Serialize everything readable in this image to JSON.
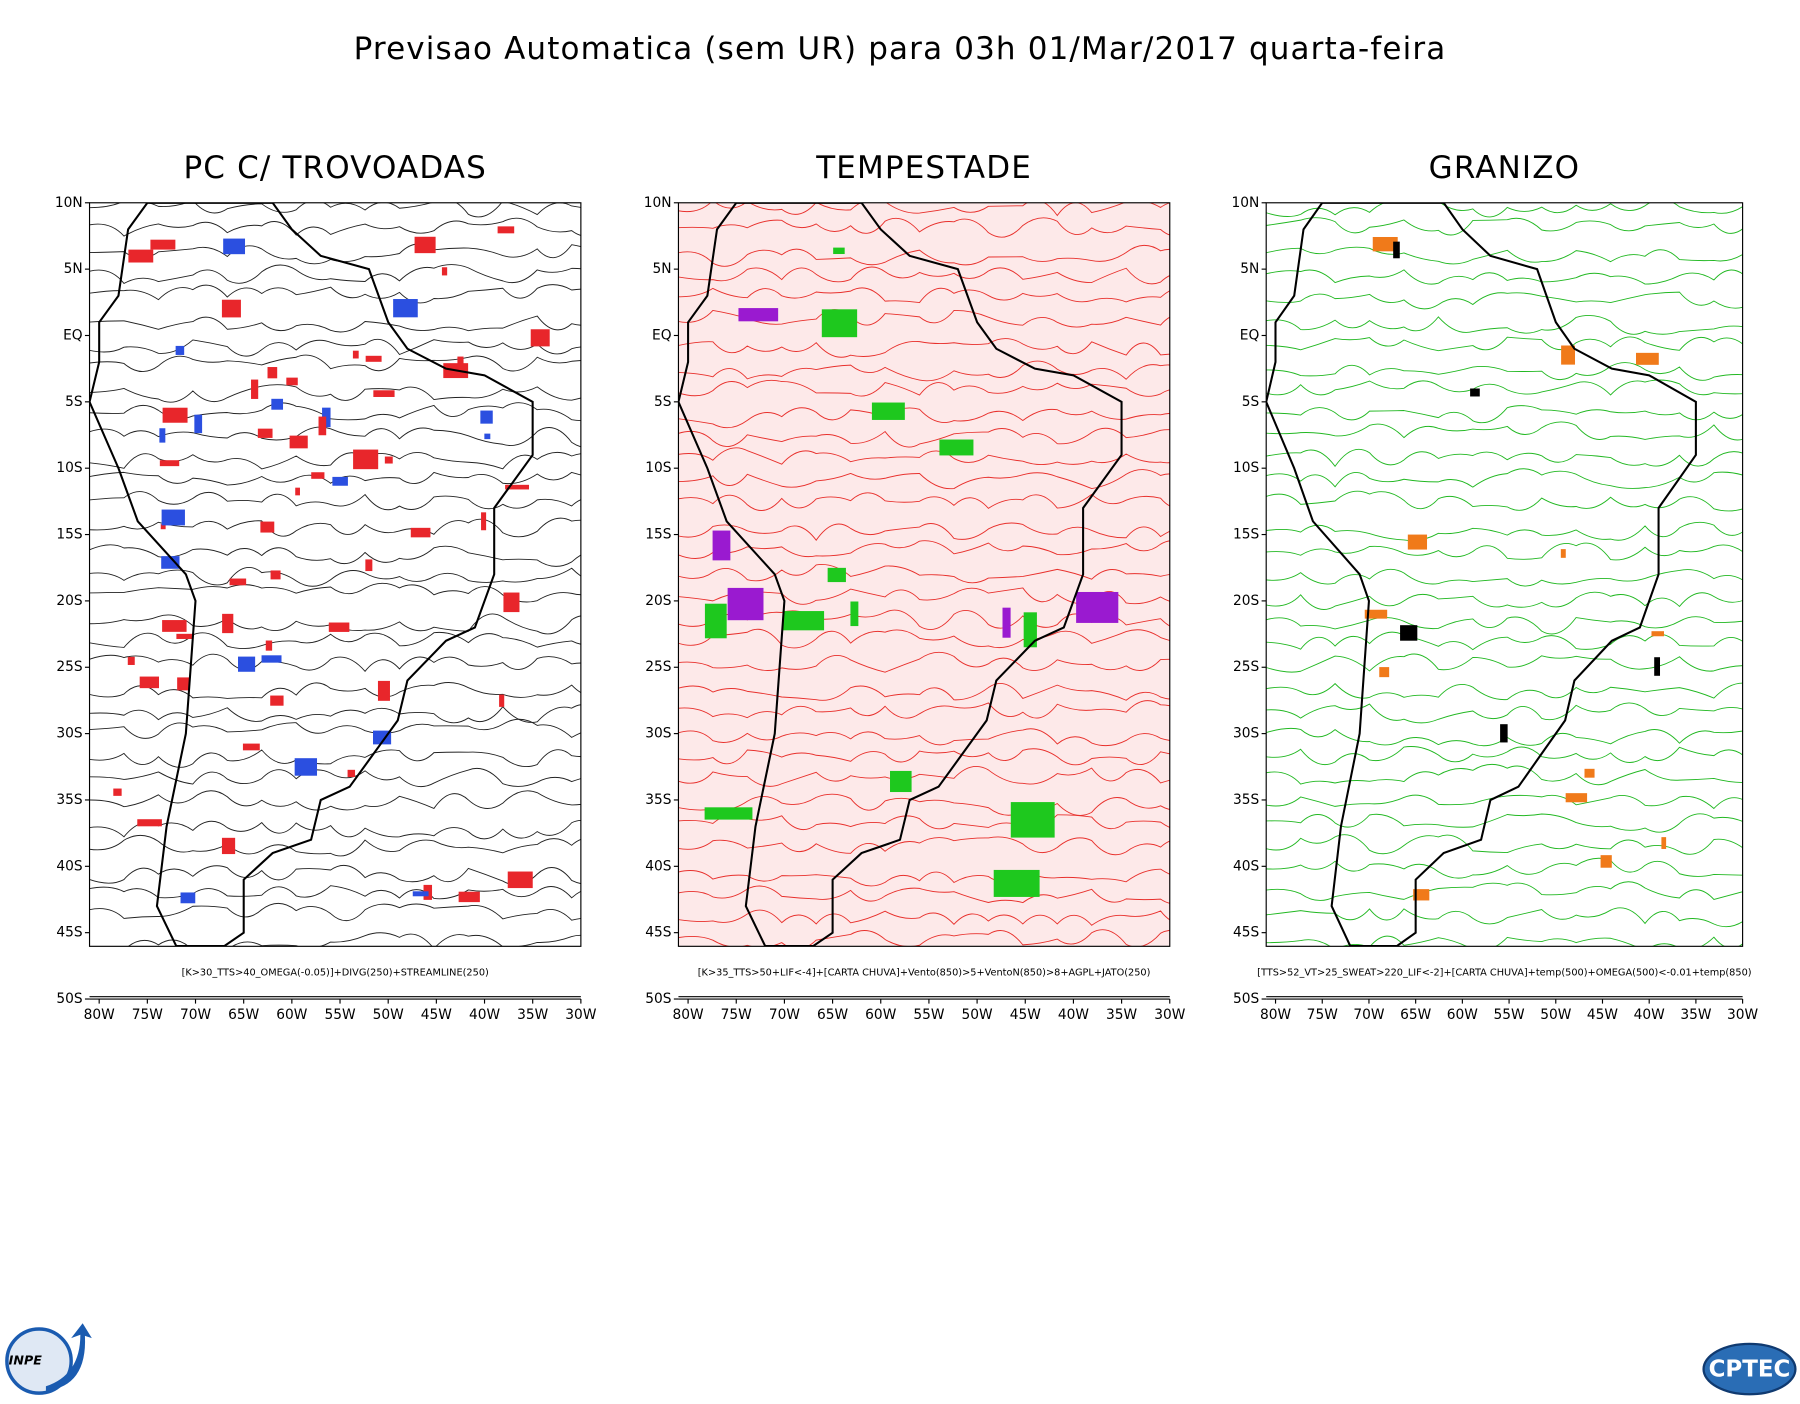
{
  "title": "Previsao Automatica (sem UR) para 03h 01/Mar/2017 quarta-feira",
  "panels": [
    {
      "title": "PC C/ TROVOADAS",
      "caption": "[K>30_TTS>40_OMEGA(-0.05)]+DIVG(250)+STREAMLINE(250)"
    },
    {
      "title": "TEMPESTADE",
      "caption": "[K>35_TTS>50+LIF<-4]+[CARTA CHUVA]+Vento(850)>5+VentoN(850)>8+AGPL+JATO(250)"
    },
    {
      "title": "GRANIZO",
      "caption": "[TTS>52_VT>25_SWEAT>220_LIF<-2]+[CARTA CHUVA]+temp(500)+OMEGA(500)<-0.01+temp(850)"
    }
  ],
  "lat_labels": [
    "10N",
    "5N",
    "EQ",
    "5S",
    "10S",
    "15S",
    "20S",
    "25S",
    "30S",
    "35S",
    "40S",
    "45S",
    "50S"
  ],
  "lon_labels": [
    "80W",
    "75W",
    "70W",
    "65W",
    "60W",
    "55W",
    "50W",
    "45W",
    "40W",
    "35W",
    "30W"
  ],
  "logos": {
    "left": "INPE",
    "right": "CPTEC"
  }
}
